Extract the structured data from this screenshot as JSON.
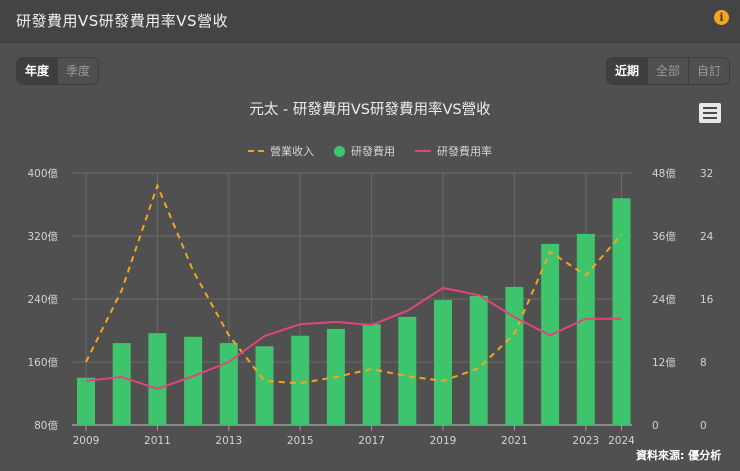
{
  "header": {
    "title": "研發費用VS研發費用率VS營收",
    "info_icon": "info-icon"
  },
  "period_toggle": {
    "options": [
      "年度",
      "季度"
    ],
    "selected": "年度"
  },
  "range_toggle": {
    "options": [
      "近期",
      "全部",
      "自訂"
    ],
    "selected": "近期"
  },
  "chart_title": "元太 - 研發費用VS研發費用率VS營收",
  "menu_icon": "hamburger-menu-icon",
  "legend": [
    {
      "label": "營業收入",
      "type": "dashed-line",
      "color": "#f5a51d"
    },
    {
      "label": "研發費用",
      "type": "bar",
      "color": "#3fc46e"
    },
    {
      "label": "研發費用率",
      "type": "line",
      "color": "#e0457b"
    }
  ],
  "source": "資料來源: 優分析",
  "colors": {
    "background": "#505050",
    "header": "#444444",
    "revenue": "#f5a51d",
    "rd_expense": "#3fc46e",
    "rd_rate": "#e0457b",
    "grid": "#6a6a6a"
  },
  "chart_data": {
    "type": "bar+line",
    "title": "元太 - 研發費用VS研發費用率VS營收",
    "categories": [
      "2009",
      "2010",
      "2011",
      "2012",
      "2013",
      "2014",
      "2015",
      "2016",
      "2017",
      "2018",
      "2019",
      "2020",
      "2021",
      "2022",
      "2023",
      "2024"
    ],
    "x_tick_labels": [
      "2009",
      "2011",
      "2013",
      "2015",
      "2017",
      "2019",
      "2021",
      "2023",
      "2024"
    ],
    "series": [
      {
        "name": "營業收入",
        "type": "line-dashed",
        "axis": "left",
        "unit": "億",
        "values": [
          160,
          251,
          384,
          276,
          194,
          136,
          133,
          141,
          151,
          142,
          136,
          152,
          196,
          300,
          270,
          322
        ]
      },
      {
        "name": "研發費用",
        "type": "bar",
        "axis": "middle",
        "unit": "億",
        "values": [
          9.0,
          15.6,
          17.5,
          16.8,
          15.6,
          15.0,
          17.0,
          18.3,
          19.2,
          20.6,
          23.8,
          24.6,
          26.3,
          34.5,
          36.4,
          43.2
        ]
      },
      {
        "name": "研發費用率",
        "type": "line",
        "axis": "right",
        "unit": "%",
        "values": [
          5.6,
          6.1,
          4.6,
          6.2,
          8.0,
          11.3,
          12.8,
          13.1,
          12.7,
          14.5,
          17.4,
          16.5,
          13.7,
          11.4,
          13.5,
          13.5
        ]
      }
    ],
    "axes": {
      "left": {
        "ticks": [
          "400億",
          "320億",
          "240億",
          "160億",
          "80億"
        ],
        "range": [
          80,
          400
        ]
      },
      "middle": {
        "ticks": [
          "48億",
          "36億",
          "24億",
          "12億",
          "0"
        ],
        "range": [
          0,
          48
        ]
      },
      "right": {
        "ticks": [
          "32",
          "24",
          "16",
          "8",
          "0"
        ],
        "range": [
          0,
          32
        ]
      }
    },
    "grid": true,
    "legend_position": "top"
  }
}
